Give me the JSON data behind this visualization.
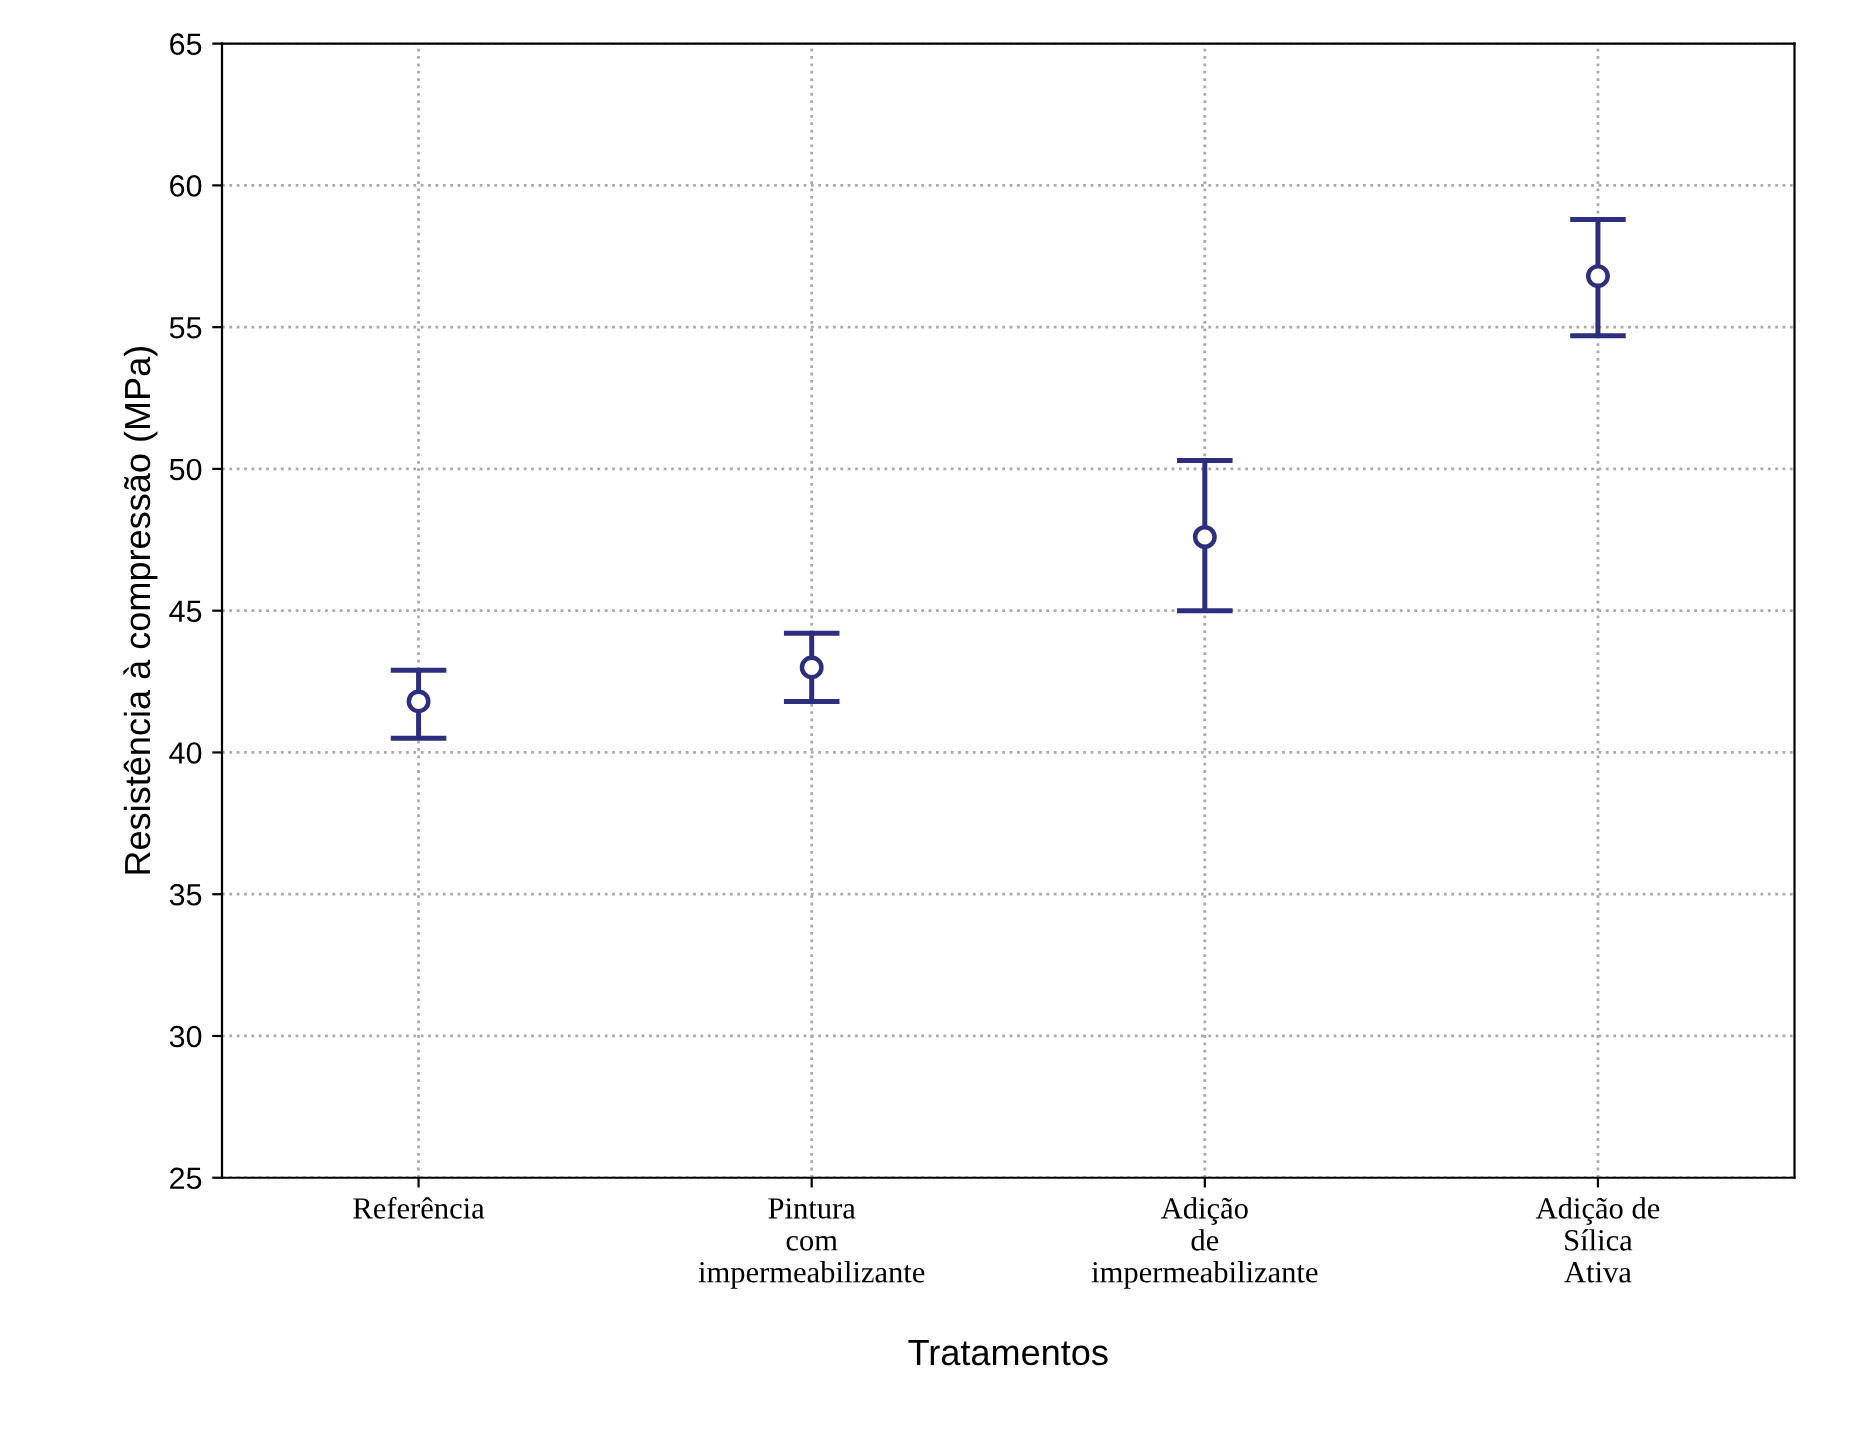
{
  "chart_data": {
    "type": "scatter",
    "xlabel": "Tratamentos",
    "ylabel": "Resistência à compressão (MPa)",
    "categories": [
      "Referência",
      "Pintura\ncom\nimpermeabilizante",
      "Adição\nde\nimpermeabilizante",
      "Adição de\nSílica\nAtiva"
    ],
    "series": [
      {
        "color": "#2e2e7e",
        "values": [
          41.8,
          43.0,
          47.6,
          56.8
        ],
        "errors": [
          [
            40.5,
            42.9
          ],
          [
            41.8,
            44.2
          ],
          [
            45.0,
            50.3
          ],
          [
            54.7,
            58.8
          ]
        ]
      }
    ],
    "ylim": [
      25,
      65
    ],
    "yticks": [
      25,
      30,
      35,
      40,
      45,
      50,
      55,
      60,
      65
    ],
    "grid": true,
    "marker": "circle",
    "legend": false
  }
}
